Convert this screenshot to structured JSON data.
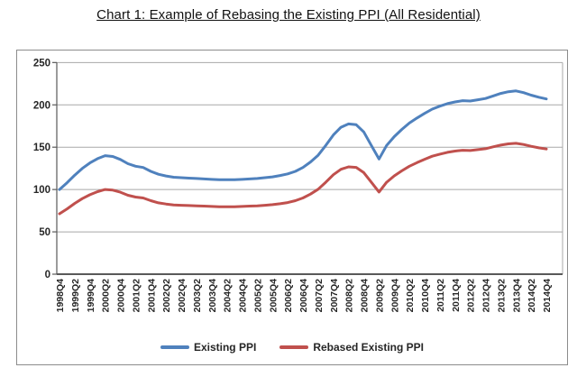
{
  "page": {
    "title": "Chart 1: Example of Rebasing the Existing PPI (All Residential)"
  },
  "chart_data": {
    "type": "line",
    "title": "Chart 1: Example of Rebasing the Existing PPI (All Residential)",
    "xlabel": "",
    "ylabel": "",
    "ylim": [
      0,
      250
    ],
    "y_ticks": [
      0,
      50,
      100,
      150,
      200,
      250
    ],
    "grid": "horizontal",
    "legend_position": "bottom",
    "x_tick_step": 2,
    "x": [
      "1998Q4",
      "1999Q1",
      "1999Q2",
      "1999Q3",
      "1999Q4",
      "2000Q1",
      "2000Q2",
      "2000Q3",
      "2000Q4",
      "2001Q1",
      "2001Q2",
      "2001Q3",
      "2001Q4",
      "2002Q1",
      "2002Q2",
      "2002Q3",
      "2002Q4",
      "2003Q1",
      "2003Q2",
      "2003Q3",
      "2003Q4",
      "2004Q1",
      "2004Q2",
      "2004Q3",
      "2004Q4",
      "2005Q1",
      "2005Q2",
      "2005Q3",
      "2005Q4",
      "2006Q1",
      "2006Q2",
      "2006Q3",
      "2006Q4",
      "2007Q1",
      "2007Q2",
      "2007Q3",
      "2007Q4",
      "2008Q1",
      "2008Q2",
      "2008Q3",
      "2008Q4",
      "2009Q1",
      "2009Q2",
      "2009Q3",
      "2009Q4",
      "2010Q1",
      "2010Q2",
      "2010Q3",
      "2010Q4",
      "2011Q1",
      "2011Q2",
      "2011Q3",
      "2011Q4",
      "2012Q1",
      "2012Q2",
      "2012Q3",
      "2012Q4",
      "2013Q1",
      "2013Q2",
      "2013Q3",
      "2013Q4",
      "2014Q1",
      "2014Q2",
      "2014Q3",
      "2014Q4"
    ],
    "x_labels_shown": [
      "1998Q4",
      "1999Q2",
      "1999Q4",
      "2000Q2",
      "2000Q4",
      "2001Q2",
      "2001Q4",
      "2002Q2",
      "2002Q4",
      "2003Q2",
      "2003Q4",
      "2004Q2",
      "2004Q4",
      "2005Q2",
      "2005Q4",
      "2006Q2",
      "2006Q4",
      "2007Q2",
      "2007Q4",
      "2008Q2",
      "2008Q4",
      "2009Q2",
      "2009Q4",
      "2010Q2",
      "2010Q4",
      "2011Q2",
      "2011Q4",
      "2012Q2",
      "2012Q4",
      "2013Q2",
      "2013Q4",
      "2014Q2",
      "2014Q4"
    ],
    "series": [
      {
        "name": "Existing PPI",
        "color": "#4F81BD",
        "values": [
          100,
          108,
          117,
          125,
          131.5,
          136.5,
          140,
          139,
          135.5,
          130.5,
          127.5,
          126,
          121.5,
          118,
          116,
          114.5,
          114,
          113.5,
          113,
          112.5,
          112,
          111.5,
          111.5,
          111.5,
          112,
          112.5,
          113,
          114,
          115,
          116.5,
          118.5,
          121.5,
          126,
          132.5,
          140.5,
          152,
          164.5,
          173.5,
          177.5,
          176.5,
          168,
          152,
          136,
          152,
          162.5,
          171,
          178.5,
          184.5,
          190,
          195,
          198.5,
          201.5,
          203.5,
          205,
          204.5,
          206,
          207.5,
          210.5,
          213.5,
          215.5,
          216.5,
          214.5,
          211.5,
          209,
          207
        ]
      },
      {
        "name": "Rebased Existing PPI",
        "color": "#C0504D",
        "values": [
          71.4,
          77.1,
          83.6,
          89.3,
          93.9,
          97.5,
          100,
          99.3,
          96.8,
          93.2,
          91.1,
          90,
          86.8,
          84.3,
          82.9,
          81.8,
          81.4,
          81.1,
          80.7,
          80.4,
          80,
          79.6,
          79.6,
          79.6,
          80,
          80.4,
          80.7,
          81.4,
          82.1,
          83.2,
          84.6,
          86.8,
          90,
          94.6,
          100.4,
          108.6,
          117.5,
          123.9,
          126.8,
          126.1,
          120,
          108.6,
          97.1,
          108.6,
          116.1,
          122.1,
          127.5,
          131.8,
          135.7,
          139.3,
          141.8,
          143.9,
          145.4,
          146.4,
          146.1,
          147.1,
          148.2,
          150.4,
          152.5,
          153.9,
          154.6,
          153.2,
          151.1,
          149.3,
          147.9
        ]
      }
    ],
    "colors": {
      "gridline": "#a8a8a8",
      "axis": "#595959",
      "label_text": "#262626",
      "box_border": "#8c8c8c"
    }
  }
}
